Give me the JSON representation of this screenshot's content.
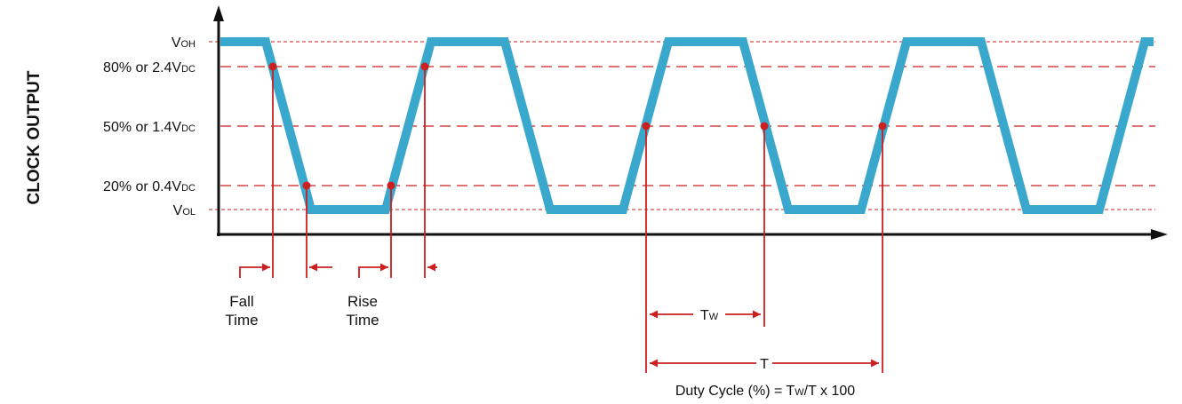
{
  "axis_title": "CLOCK OUTPUT",
  "levels": [
    {
      "main": "V",
      "sub": "OH"
    },
    {
      "main": "80% or 2.4V",
      "sub": "DC"
    },
    {
      "main": "50% or 1.4V",
      "sub": "DC"
    },
    {
      "main": "20% or 0.4V",
      "sub": "DC"
    },
    {
      "main": "V",
      "sub": "OL"
    }
  ],
  "fall_time": {
    "line1": "Fall",
    "line2": "Time"
  },
  "rise_time": {
    "line1": "Rise",
    "line2": "Time"
  },
  "tw_label": {
    "main": "T",
    "sub": "W"
  },
  "t_label": "T",
  "duty_cycle": {
    "prefix": "Duty Cycle (%) = T",
    "sub": "W",
    "suffix": "/T x 100"
  },
  "colors": {
    "waveform": "#3aa8cc",
    "guides": "#cc1f1f",
    "axes": "#111111"
  }
}
